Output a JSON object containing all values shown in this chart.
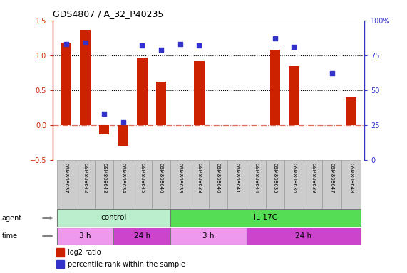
{
  "title": "GDS4807 / A_32_P40235",
  "samples": [
    "GSM808637",
    "GSM808642",
    "GSM808643",
    "GSM808634",
    "GSM808645",
    "GSM808646",
    "GSM808633",
    "GSM808638",
    "GSM808640",
    "GSM808641",
    "GSM808644",
    "GSM808635",
    "GSM808636",
    "GSM808639",
    "GSM808647",
    "GSM808648"
  ],
  "log2_ratio": [
    1.18,
    1.37,
    -0.13,
    -0.3,
    0.97,
    0.62,
    0.0,
    0.92,
    0.0,
    0.0,
    0.0,
    1.08,
    0.85,
    0.0,
    0.0,
    0.4
  ],
  "percentile": [
    83,
    84,
    33,
    27,
    82,
    79,
    83,
    82,
    null,
    null,
    null,
    87,
    81,
    null,
    62,
    null
  ],
  "show_percentile": [
    true,
    true,
    true,
    true,
    true,
    true,
    true,
    true,
    false,
    false,
    false,
    true,
    true,
    false,
    true,
    false
  ],
  "bar_color": "#cc2200",
  "dot_color": "#3333cc",
  "bg_color": "#ffffff",
  "ylim_left": [
    -0.5,
    1.5
  ],
  "ylim_right": [
    0,
    100
  ],
  "yticks_left": [
    -0.5,
    0.0,
    0.5,
    1.0,
    1.5
  ],
  "yticks_right": [
    0,
    25,
    50,
    75,
    100
  ],
  "hlines": [
    0.5,
    1.0
  ],
  "agent_groups": [
    {
      "label": "control",
      "start": 0,
      "end": 6,
      "color": "#bbeecc"
    },
    {
      "label": "IL-17C",
      "start": 6,
      "end": 16,
      "color": "#55dd55"
    }
  ],
  "time_groups": [
    {
      "label": "3 h",
      "start": 0,
      "end": 3,
      "color": "#ee99ee"
    },
    {
      "label": "24 h",
      "start": 3,
      "end": 6,
      "color": "#cc44cc"
    },
    {
      "label": "3 h",
      "start": 6,
      "end": 10,
      "color": "#ee99ee"
    },
    {
      "label": "24 h",
      "start": 10,
      "end": 16,
      "color": "#cc44cc"
    }
  ],
  "legend": [
    {
      "label": "log2 ratio",
      "color": "#cc2200"
    },
    {
      "label": "percentile rank within the sample",
      "color": "#3333cc"
    }
  ]
}
